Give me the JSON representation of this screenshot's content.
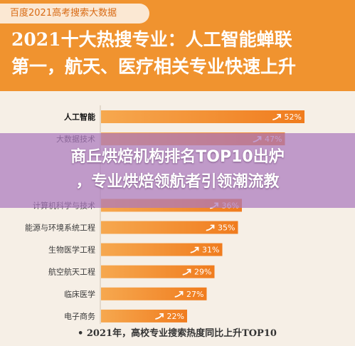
{
  "header": {
    "source_tag": "百度2021高考搜索大数据",
    "headline_line1": "2021十大热搜专业：人工智能蝉联",
    "headline_line2": "第一，航天、医疗相关专业快速上升"
  },
  "overlay": {
    "line1": "商丘烘焙机构排名TOP10出炉",
    "line2": "，专业烘焙领航者引领潮流教"
  },
  "colors": {
    "header_bg": "#f0932f",
    "bar_start": "#f6a84f",
    "bar_end": "#f07c1e"
  },
  "chart_data": {
    "type": "bar",
    "orientation": "horizontal",
    "categories": [
      "人工智能",
      "大数据技术",
      "",
      "",
      "计算机科学与技术",
      "能源与环境系统工程",
      "生物医学工程",
      "航空航天工程",
      "临床医学",
      "电子商务"
    ],
    "values": [
      52,
      47,
      null,
      null,
      36,
      35,
      31,
      29,
      27,
      22
    ],
    "value_labels": [
      "52%",
      "47%",
      "",
      "",
      "36%",
      "35%",
      "31%",
      "29%",
      "27%",
      "22%"
    ],
    "highlight_first": true,
    "caption": "• 2021年，高校专业搜索热度同比上升TOP10",
    "xlim": [
      0,
      60
    ],
    "grid": false
  }
}
